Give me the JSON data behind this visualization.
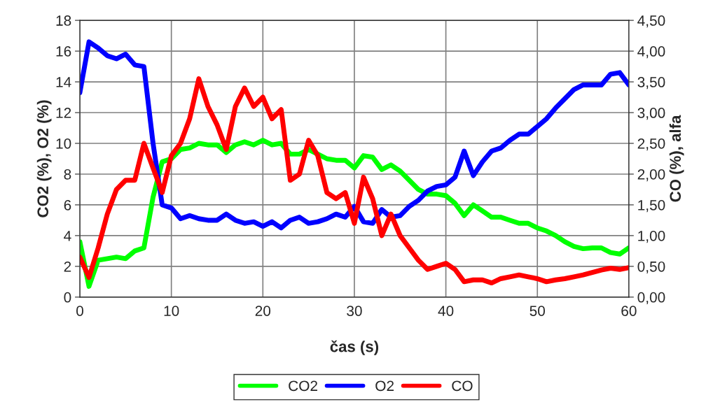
{
  "chart_data": {
    "type": "line",
    "xlabel": "čas (s)",
    "ylabel": "CO2 (%), O2 (%)",
    "y2label": "CO (%), alfa",
    "x": [
      0,
      1,
      2,
      3,
      4,
      5,
      6,
      7,
      8,
      9,
      10,
      11,
      12,
      13,
      14,
      15,
      16,
      17,
      18,
      19,
      20,
      21,
      22,
      23,
      24,
      25,
      26,
      27,
      28,
      29,
      30,
      31,
      32,
      33,
      34,
      35,
      36,
      37,
      38,
      39,
      40,
      41,
      42,
      43,
      44,
      45,
      46,
      47,
      48,
      49,
      50,
      51,
      52,
      53,
      54,
      55,
      56,
      57,
      58,
      59,
      60
    ],
    "series": [
      {
        "name": "CO2",
        "color": "#00ff00",
        "values": [
          3.6,
          0.7,
          2.4,
          2.5,
          2.6,
          2.5,
          3.0,
          3.2,
          6.5,
          8.8,
          9.0,
          9.6,
          9.7,
          10.0,
          9.9,
          9.9,
          9.4,
          9.9,
          10.1,
          9.9,
          10.2,
          9.9,
          10.0,
          9.3,
          9.3,
          9.6,
          9.3,
          9.0,
          8.9,
          8.9,
          8.4,
          9.2,
          9.1,
          8.3,
          8.6,
          8.2,
          7.6,
          7.0,
          6.7,
          6.7,
          6.6,
          6.1,
          5.3,
          6.0,
          5.6,
          5.2,
          5.2,
          5.0,
          4.8,
          4.8,
          4.5,
          4.3,
          4.0,
          3.6,
          3.3,
          3.15,
          3.2,
          3.2,
          2.9,
          2.8,
          3.2
        ]
      },
      {
        "name": "O2",
        "color": "#0000ff",
        "values": [
          13.3,
          16.6,
          16.2,
          15.7,
          15.5,
          15.8,
          15.1,
          15.0,
          10.0,
          6.0,
          5.8,
          5.1,
          5.3,
          5.1,
          5.0,
          5.0,
          5.4,
          5.0,
          4.8,
          4.9,
          4.6,
          4.9,
          4.5,
          5.0,
          5.2,
          4.8,
          4.9,
          5.1,
          5.4,
          5.2,
          5.9,
          4.9,
          4.8,
          5.7,
          5.2,
          5.3,
          5.9,
          6.3,
          6.9,
          7.2,
          7.3,
          7.8,
          9.5,
          7.9,
          8.8,
          9.5,
          9.7,
          10.2,
          10.6,
          10.6,
          11.1,
          11.6,
          12.3,
          12.9,
          13.5,
          13.8,
          13.8,
          13.8,
          14.5,
          14.6,
          13.8
        ]
      },
      {
        "name": "CO",
        "color": "#ff0000",
        "axis": "y2",
        "values": [
          0.65,
          0.32,
          0.8,
          1.35,
          1.75,
          1.9,
          1.9,
          2.5,
          2.1,
          1.7,
          2.3,
          2.5,
          2.9,
          3.55,
          3.1,
          2.8,
          2.4,
          3.1,
          3.4,
          3.1,
          3.25,
          2.9,
          3.05,
          1.9,
          2.0,
          2.55,
          2.3,
          1.7,
          1.6,
          1.7,
          1.2,
          1.95,
          1.6,
          1.0,
          1.35,
          1.0,
          0.8,
          0.6,
          0.45,
          0.5,
          0.55,
          0.45,
          0.25,
          0.28,
          0.28,
          0.23,
          0.3,
          0.33,
          0.36,
          0.33,
          0.3,
          0.25,
          0.28,
          0.3,
          0.33,
          0.36,
          0.4,
          0.44,
          0.47,
          0.45,
          0.48
        ]
      }
    ],
    "xlim": [
      0,
      60
    ],
    "xticks": [
      0,
      10,
      20,
      30,
      40,
      50,
      60
    ],
    "ylim": [
      0,
      18
    ],
    "yticks": [
      0,
      2,
      4,
      6,
      8,
      10,
      12,
      14,
      16,
      18
    ],
    "y2lim": [
      0,
      4.5
    ],
    "y2ticks": [
      {
        "value": 0,
        "label": "0,00"
      },
      {
        "value": 0.5,
        "label": "0,50"
      },
      {
        "value": 1,
        "label": "1,00"
      },
      {
        "value": 1.5,
        "label": "1,50"
      },
      {
        "value": 2,
        "label": "2,00"
      },
      {
        "value": 2.5,
        "label": "2,50"
      },
      {
        "value": 3,
        "label": "3,00"
      },
      {
        "value": 3.5,
        "label": "3,50"
      },
      {
        "value": 4,
        "label": "4,00"
      },
      {
        "value": 4.5,
        "label": "4,50"
      }
    ],
    "grid": true,
    "legend": "bottom",
    "line_style": "solid",
    "marker": "none"
  }
}
